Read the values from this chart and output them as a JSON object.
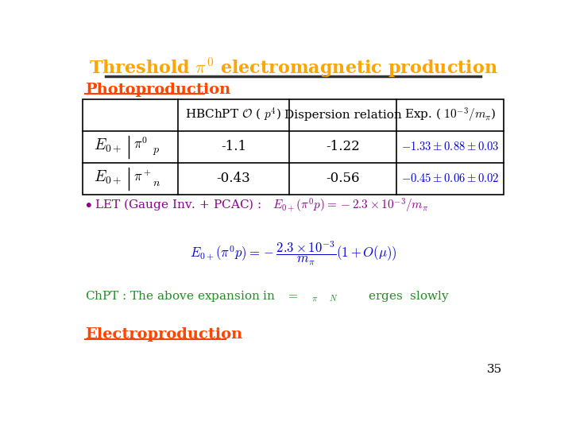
{
  "bg_color": "#ffffff",
  "title_color": "#FFA500",
  "photoproduction_color": "#FF4500",
  "exp_color": "#0000CD",
  "let_color": "#8B008B",
  "formula_color": "#0000CD",
  "chpt_color": "#228B22",
  "electroproduction_color": "#FF4500",
  "table_row1_col2": "-1.1",
  "table_row1_col3": "-1.22",
  "table_row2_col2": "-0.43",
  "table_row2_col3": "-0.56",
  "page_number": "35"
}
